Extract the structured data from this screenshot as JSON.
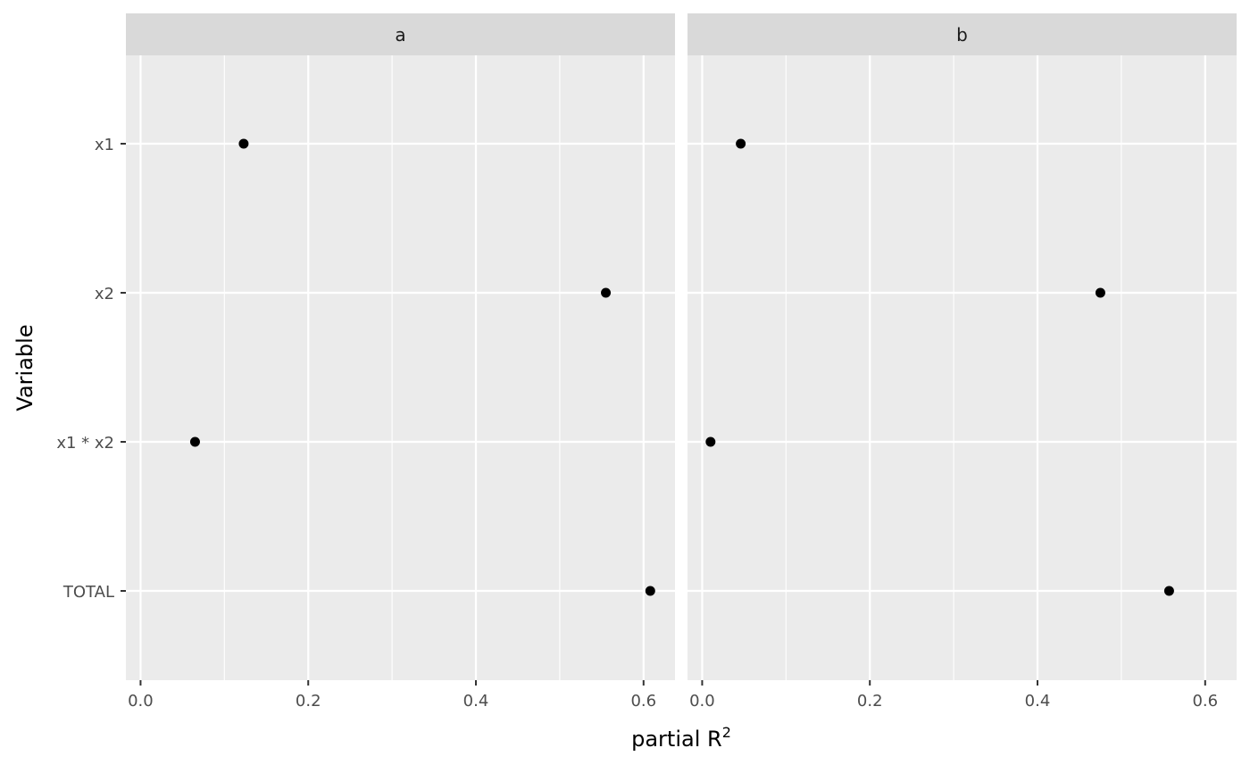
{
  "chart_data": {
    "type": "scatter",
    "facets": [
      {
        "label": "a",
        "points": [
          {
            "variable": "x1",
            "value": 0.123
          },
          {
            "variable": "x2",
            "value": 0.555
          },
          {
            "variable": "x1 * x2",
            "value": 0.065
          },
          {
            "variable": "TOTAL",
            "value": 0.608
          }
        ]
      },
      {
        "label": "b",
        "points": [
          {
            "variable": "x1",
            "value": 0.046
          },
          {
            "variable": "x2",
            "value": 0.475
          },
          {
            "variable": "x1 * x2",
            "value": 0.01
          },
          {
            "variable": "TOTAL",
            "value": 0.557
          }
        ]
      }
    ],
    "y_categories": [
      "x1",
      "x2",
      "x1 * x2",
      "TOTAL"
    ],
    "x_ticks": [
      "0.0",
      "0.2",
      "0.4",
      "0.6"
    ],
    "x_tick_values": [
      0,
      0.2,
      0.4,
      0.6
    ],
    "x_minor_values": [
      0.1,
      0.3,
      0.5
    ],
    "xlim": [
      -0.0175,
      0.6375
    ],
    "xlabel": "partial R",
    "xlabel_superscript": "2",
    "ylabel": "Variable",
    "grid": true,
    "colors": {
      "panel_background": "#EBEBEB",
      "strip_background": "#D9D9D9",
      "grid": "#FFFFFF",
      "point": "#000000",
      "tick": "#333333"
    }
  }
}
